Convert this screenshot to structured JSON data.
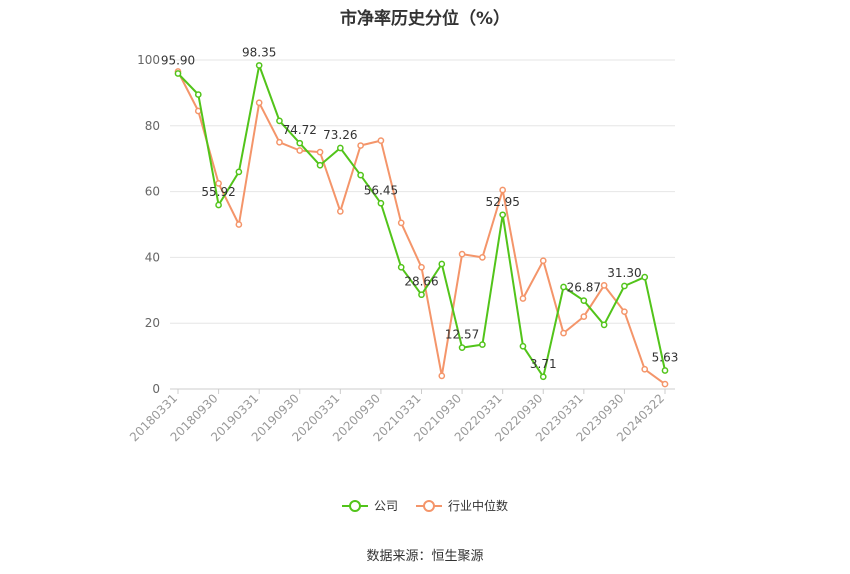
{
  "title": "市净率历史分位（%）",
  "source_text": "数据来源：恒生聚源",
  "chart_data": {
    "type": "line",
    "title": "市净率历史分位（%）",
    "ylim": [
      0,
      100
    ],
    "y_ticks": [
      0,
      20,
      40,
      60,
      80,
      100
    ],
    "x_tick_labels": [
      "20180331",
      "20180930",
      "20190331",
      "20190930",
      "20200331",
      "20200930",
      "20210331",
      "20210930",
      "20220331",
      "20220930",
      "20230331",
      "20230930",
      "20240322"
    ],
    "x_tick_indices": [
      0,
      2,
      4,
      6,
      8,
      10,
      12,
      14,
      16,
      18,
      20,
      22,
      24
    ],
    "grid": true,
    "legend_position": "bottom",
    "series": [
      {
        "name": "公司",
        "color": "#52c41a",
        "values": [
          95.9,
          89.5,
          55.92,
          66.0,
          98.35,
          81.5,
          74.72,
          68.0,
          73.26,
          65.0,
          56.45,
          37.0,
          28.66,
          38.0,
          12.57,
          13.5,
          52.95,
          13.0,
          3.71,
          31.0,
          26.87,
          19.5,
          31.3,
          34.0,
          5.63
        ],
        "labels": {
          "0": "95.90",
          "2": "55.92",
          "4": "98.35",
          "6": "74.72",
          "8": "73.26",
          "10": "56.45",
          "12": "28.66",
          "14": "12.57",
          "16": "52.95",
          "18": "3.71",
          "20": "26.87",
          "22": "31.30",
          "24": "5.63"
        }
      },
      {
        "name": "行业中位数",
        "color": "#f4956a",
        "values": [
          96.5,
          84.5,
          62.5,
          50.0,
          87.0,
          75.0,
          72.5,
          72.0,
          54.0,
          74.0,
          75.5,
          50.5,
          37.0,
          4.0,
          41.0,
          40.0,
          60.5,
          27.5,
          39.0,
          17.0,
          22.0,
          31.5,
          23.5,
          6.0,
          1.5
        ]
      }
    ]
  }
}
